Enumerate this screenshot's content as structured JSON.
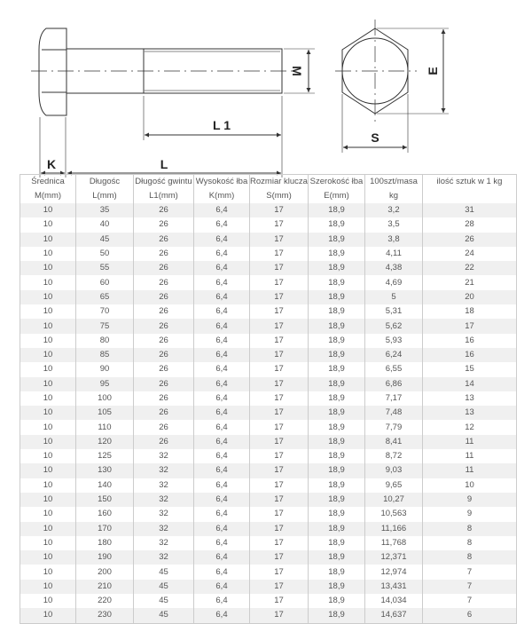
{
  "drawing": {
    "labels": {
      "M": "M",
      "L1": "L 1",
      "L": "L",
      "K": "K",
      "E": "E",
      "S": "S"
    }
  },
  "table": {
    "headers": [
      "Średnica",
      "Długośc",
      "Długość gwintu",
      "Wysokość łba",
      "Rozmiar klucza",
      "Szerokość łba",
      "100szt/masa",
      "ilość sztuk w 1 kg"
    ],
    "units": [
      "M(mm)",
      "L(mm)",
      "L1(mm)",
      "K(mm)",
      "S(mm)",
      "E(mm)",
      "kg",
      ""
    ],
    "rows": [
      [
        "10",
        "35",
        "26",
        "6,4",
        "17",
        "18,9",
        "3,2",
        "31"
      ],
      [
        "10",
        "40",
        "26",
        "6,4",
        "17",
        "18,9",
        "3,5",
        "28"
      ],
      [
        "10",
        "45",
        "26",
        "6,4",
        "17",
        "18,9",
        "3,8",
        "26"
      ],
      [
        "10",
        "50",
        "26",
        "6,4",
        "17",
        "18,9",
        "4,11",
        "24"
      ],
      [
        "10",
        "55",
        "26",
        "6,4",
        "17",
        "18,9",
        "4,38",
        "22"
      ],
      [
        "10",
        "60",
        "26",
        "6,4",
        "17",
        "18,9",
        "4,69",
        "21"
      ],
      [
        "10",
        "65",
        "26",
        "6,4",
        "17",
        "18,9",
        "5",
        "20"
      ],
      [
        "10",
        "70",
        "26",
        "6,4",
        "17",
        "18,9",
        "5,31",
        "18"
      ],
      [
        "10",
        "75",
        "26",
        "6,4",
        "17",
        "18,9",
        "5,62",
        "17"
      ],
      [
        "10",
        "80",
        "26",
        "6,4",
        "17",
        "18,9",
        "5,93",
        "16"
      ],
      [
        "10",
        "85",
        "26",
        "6,4",
        "17",
        "18,9",
        "6,24",
        "16"
      ],
      [
        "10",
        "90",
        "26",
        "6,4",
        "17",
        "18,9",
        "6,55",
        "15"
      ],
      [
        "10",
        "95",
        "26",
        "6,4",
        "17",
        "18,9",
        "6,86",
        "14"
      ],
      [
        "10",
        "100",
        "26",
        "6,4",
        "17",
        "18,9",
        "7,17",
        "13"
      ],
      [
        "10",
        "105",
        "26",
        "6,4",
        "17",
        "18,9",
        "7,48",
        "13"
      ],
      [
        "10",
        "110",
        "26",
        "6,4",
        "17",
        "18,9",
        "7,79",
        "12"
      ],
      [
        "10",
        "120",
        "26",
        "6,4",
        "17",
        "18,9",
        "8,41",
        "11"
      ],
      [
        "10",
        "125",
        "32",
        "6,4",
        "17",
        "18,9",
        "8,72",
        "11"
      ],
      [
        "10",
        "130",
        "32",
        "6,4",
        "17",
        "18,9",
        "9,03",
        "11"
      ],
      [
        "10",
        "140",
        "32",
        "6,4",
        "17",
        "18,9",
        "9,65",
        "10"
      ],
      [
        "10",
        "150",
        "32",
        "6,4",
        "17",
        "18,9",
        "10,27",
        "9"
      ],
      [
        "10",
        "160",
        "32",
        "6,4",
        "17",
        "18,9",
        "10,563",
        "9"
      ],
      [
        "10",
        "170",
        "32",
        "6,4",
        "17",
        "18,9",
        "11,166",
        "8"
      ],
      [
        "10",
        "180",
        "32",
        "6,4",
        "17",
        "18,9",
        "11,768",
        "8"
      ],
      [
        "10",
        "190",
        "32",
        "6,4",
        "17",
        "18,9",
        "12,371",
        "8"
      ],
      [
        "10",
        "200",
        "45",
        "6,4",
        "17",
        "18,9",
        "12,974",
        "7"
      ],
      [
        "10",
        "210",
        "45",
        "6,4",
        "17",
        "18,9",
        "13,431",
        "7"
      ],
      [
        "10",
        "220",
        "45",
        "6,4",
        "17",
        "18,9",
        "14,034",
        "7"
      ],
      [
        "10",
        "230",
        "45",
        "6,4",
        "17",
        "18,9",
        "14,637",
        "6"
      ]
    ]
  }
}
